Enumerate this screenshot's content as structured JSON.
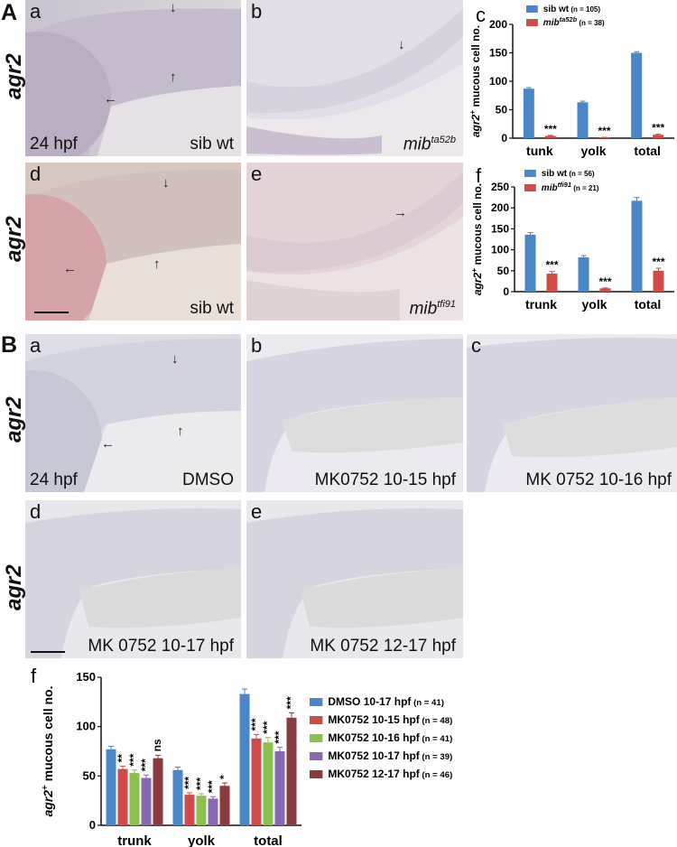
{
  "figure": {
    "sections": [
      "A",
      "B"
    ],
    "gene": "agr2",
    "panels": {
      "A_a": {
        "letter": "a",
        "caption_left": "24 hpf",
        "caption_right": "sib wt"
      },
      "A_b": {
        "letter": "b",
        "caption": "mib",
        "caption_sup": "ta52b"
      },
      "A_d": {
        "letter": "d",
        "caption": "sib wt"
      },
      "A_e": {
        "letter": "e",
        "caption": "mib",
        "caption_sup": "tfi91"
      },
      "B_a": {
        "letter": "a",
        "caption_left": "24 hpf",
        "caption_right": "DMSO"
      },
      "B_b": {
        "letter": "b",
        "caption": "MK0752 10-15 hpf"
      },
      "B_c": {
        "letter": "c",
        "caption": "MK 0752 10-16 hpf"
      },
      "B_d": {
        "letter": "d",
        "caption": "MK 0752 10-17 hpf"
      },
      "B_e": {
        "letter": "e",
        "caption": "MK 0752 12-17 hpf"
      }
    },
    "arrow_glyphs": {
      "down": "↓",
      "up": "↑",
      "left": "←",
      "right": "→"
    }
  },
  "chart_data": [
    {
      "id": "A_c",
      "panel_letter": "c",
      "type": "bar",
      "categories": [
        "tunk",
        "yolk",
        "total"
      ],
      "ylabel": "agr2+ mucous cell no.",
      "ylim": [
        0,
        200
      ],
      "yticks": [
        0,
        50,
        100,
        150,
        200
      ],
      "grid": false,
      "legend_position": "top",
      "series": [
        {
          "name": "sib wt",
          "n_label": "(n = 105)",
          "color": "#4a86c8",
          "values": [
            87,
            63,
            150
          ],
          "errors": [
            2,
            2,
            2
          ]
        },
        {
          "name": "mib",
          "name_sup": "ta52b",
          "n_label": "(n = 38)",
          "color": "#d04a48",
          "values": [
            4,
            1,
            6
          ],
          "errors": [
            1,
            0.5,
            1
          ]
        }
      ],
      "significance": [
        [
          "",
          "***"
        ],
        [
          "",
          "***"
        ],
        [
          "",
          "***"
        ]
      ]
    },
    {
      "id": "A_f",
      "panel_letter": "f",
      "type": "bar",
      "categories": [
        "trunk",
        "yolk",
        "total"
      ],
      "ylabel": "agr2+ mucous cell no.",
      "ylim": [
        0,
        250
      ],
      "yticks": [
        0,
        50,
        100,
        150,
        200,
        250
      ],
      "grid": false,
      "legend_position": "top",
      "series": [
        {
          "name": "sib wt",
          "n_label": "(n = 56)",
          "color": "#4a86c8",
          "values": [
            136,
            82,
            217
          ],
          "errors": [
            5,
            4,
            8
          ]
        },
        {
          "name": "mib",
          "name_sup": "tfi91",
          "n_label": "(n = 21)",
          "color": "#d04a48",
          "values": [
            43,
            8,
            50
          ],
          "errors": [
            5,
            1,
            6
          ]
        }
      ],
      "significance": [
        [
          "",
          "***"
        ],
        [
          "",
          "***"
        ],
        [
          "",
          "***"
        ]
      ]
    },
    {
      "id": "B_f",
      "panel_letter": "f",
      "type": "bar",
      "categories": [
        "trunk",
        "yolk",
        "total"
      ],
      "ylabel": "agr2+ mucous cell no.",
      "ylim": [
        0,
        150
      ],
      "yticks": [
        0,
        50,
        100,
        150
      ],
      "grid": false,
      "legend_position": "right",
      "series": [
        {
          "name": "DMSO    10-17 hpf",
          "n_label": "(n = 41)",
          "color": "#4a86c8",
          "values": [
            77,
            56,
            133
          ],
          "errors": [
            3,
            3,
            5
          ]
        },
        {
          "name": "MK0752 10-15 hpf",
          "n_label": "(n = 48)",
          "color": "#d04a48",
          "values": [
            57,
            31,
            88
          ],
          "errors": [
            3,
            2,
            4
          ]
        },
        {
          "name": "MK0752 10-16 hpf",
          "n_label": "(n = 41)",
          "color": "#8cc04c",
          "values": [
            53,
            30,
            84
          ],
          "errors": [
            3,
            2,
            5
          ]
        },
        {
          "name": "MK0752 10-17 hpf",
          "n_label": "(n = 39)",
          "color": "#8a67b4",
          "values": [
            48,
            27,
            75
          ],
          "errors": [
            3,
            2,
            4
          ]
        },
        {
          "name": "MK0752 12-17 hpf",
          "n_label": "(n = 46)",
          "color": "#8b3a3e",
          "values": [
            68,
            40,
            109
          ],
          "errors": [
            3,
            3,
            5
          ]
        }
      ],
      "significance": [
        [
          "",
          "**",
          "***",
          "***",
          "ns"
        ],
        [
          "",
          "***",
          "***",
          "***",
          "*"
        ],
        [
          "",
          "***",
          "***",
          "***",
          "***"
        ]
      ]
    }
  ]
}
